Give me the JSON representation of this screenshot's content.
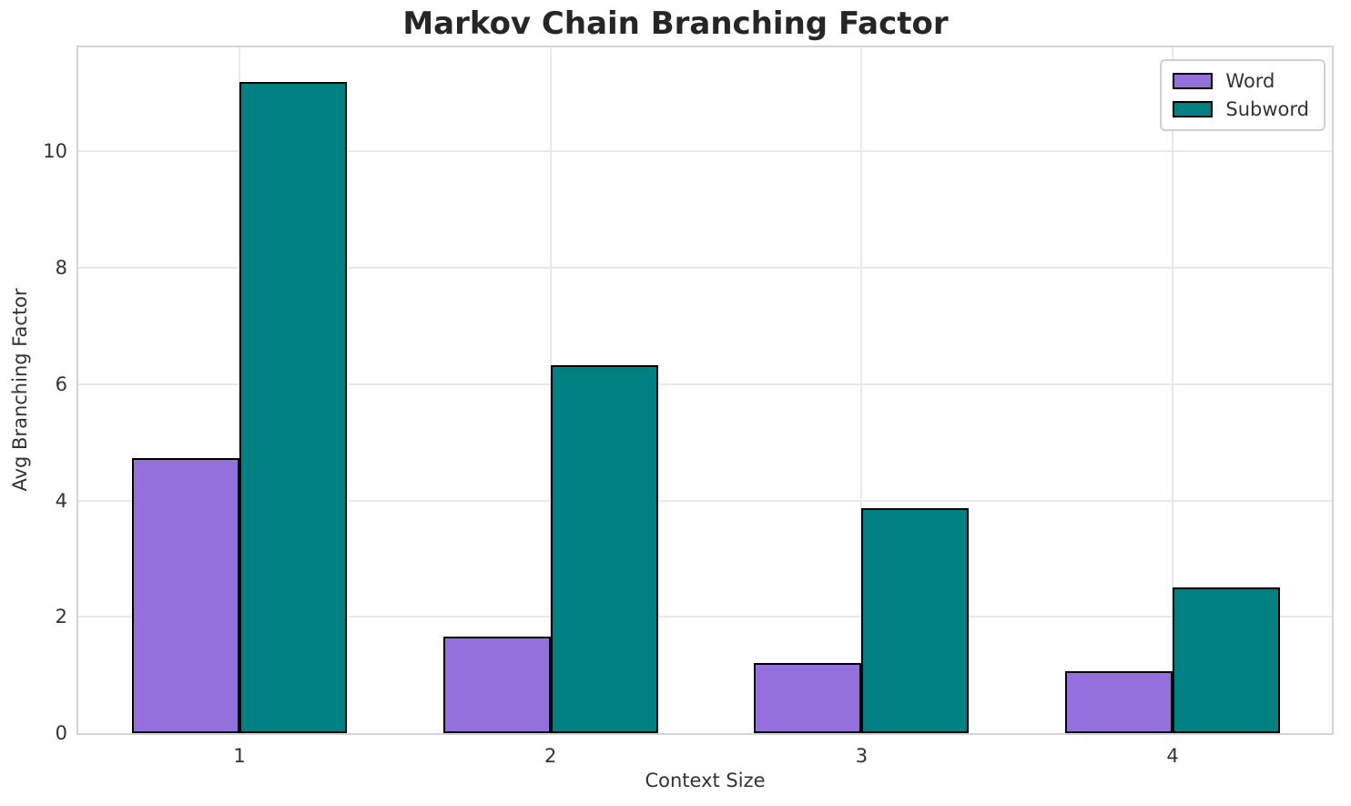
{
  "chart_data": {
    "type": "bar",
    "title": "Markov Chain Branching Factor",
    "xlabel": "Context Size",
    "ylabel": "Avg Branching Factor",
    "categories": [
      "1",
      "2",
      "3",
      "4"
    ],
    "series": [
      {
        "name": "Word",
        "color": "#9370DB",
        "values": [
          4.73,
          1.66,
          1.21,
          1.07
        ]
      },
      {
        "name": "Subword",
        "color": "#008080",
        "values": [
          11.2,
          6.32,
          3.87,
          2.5
        ]
      }
    ],
    "bar_edge_color": "#000000",
    "ylim": [
      0,
      11.79
    ],
    "yticks": [
      0,
      2,
      4,
      6,
      8,
      10
    ],
    "grid": true,
    "legend_position": "upper right",
    "colors": {
      "grid": "#e9e9e9",
      "spine": "#d4d4d4",
      "title": "#262626",
      "text": "#333333"
    }
  }
}
